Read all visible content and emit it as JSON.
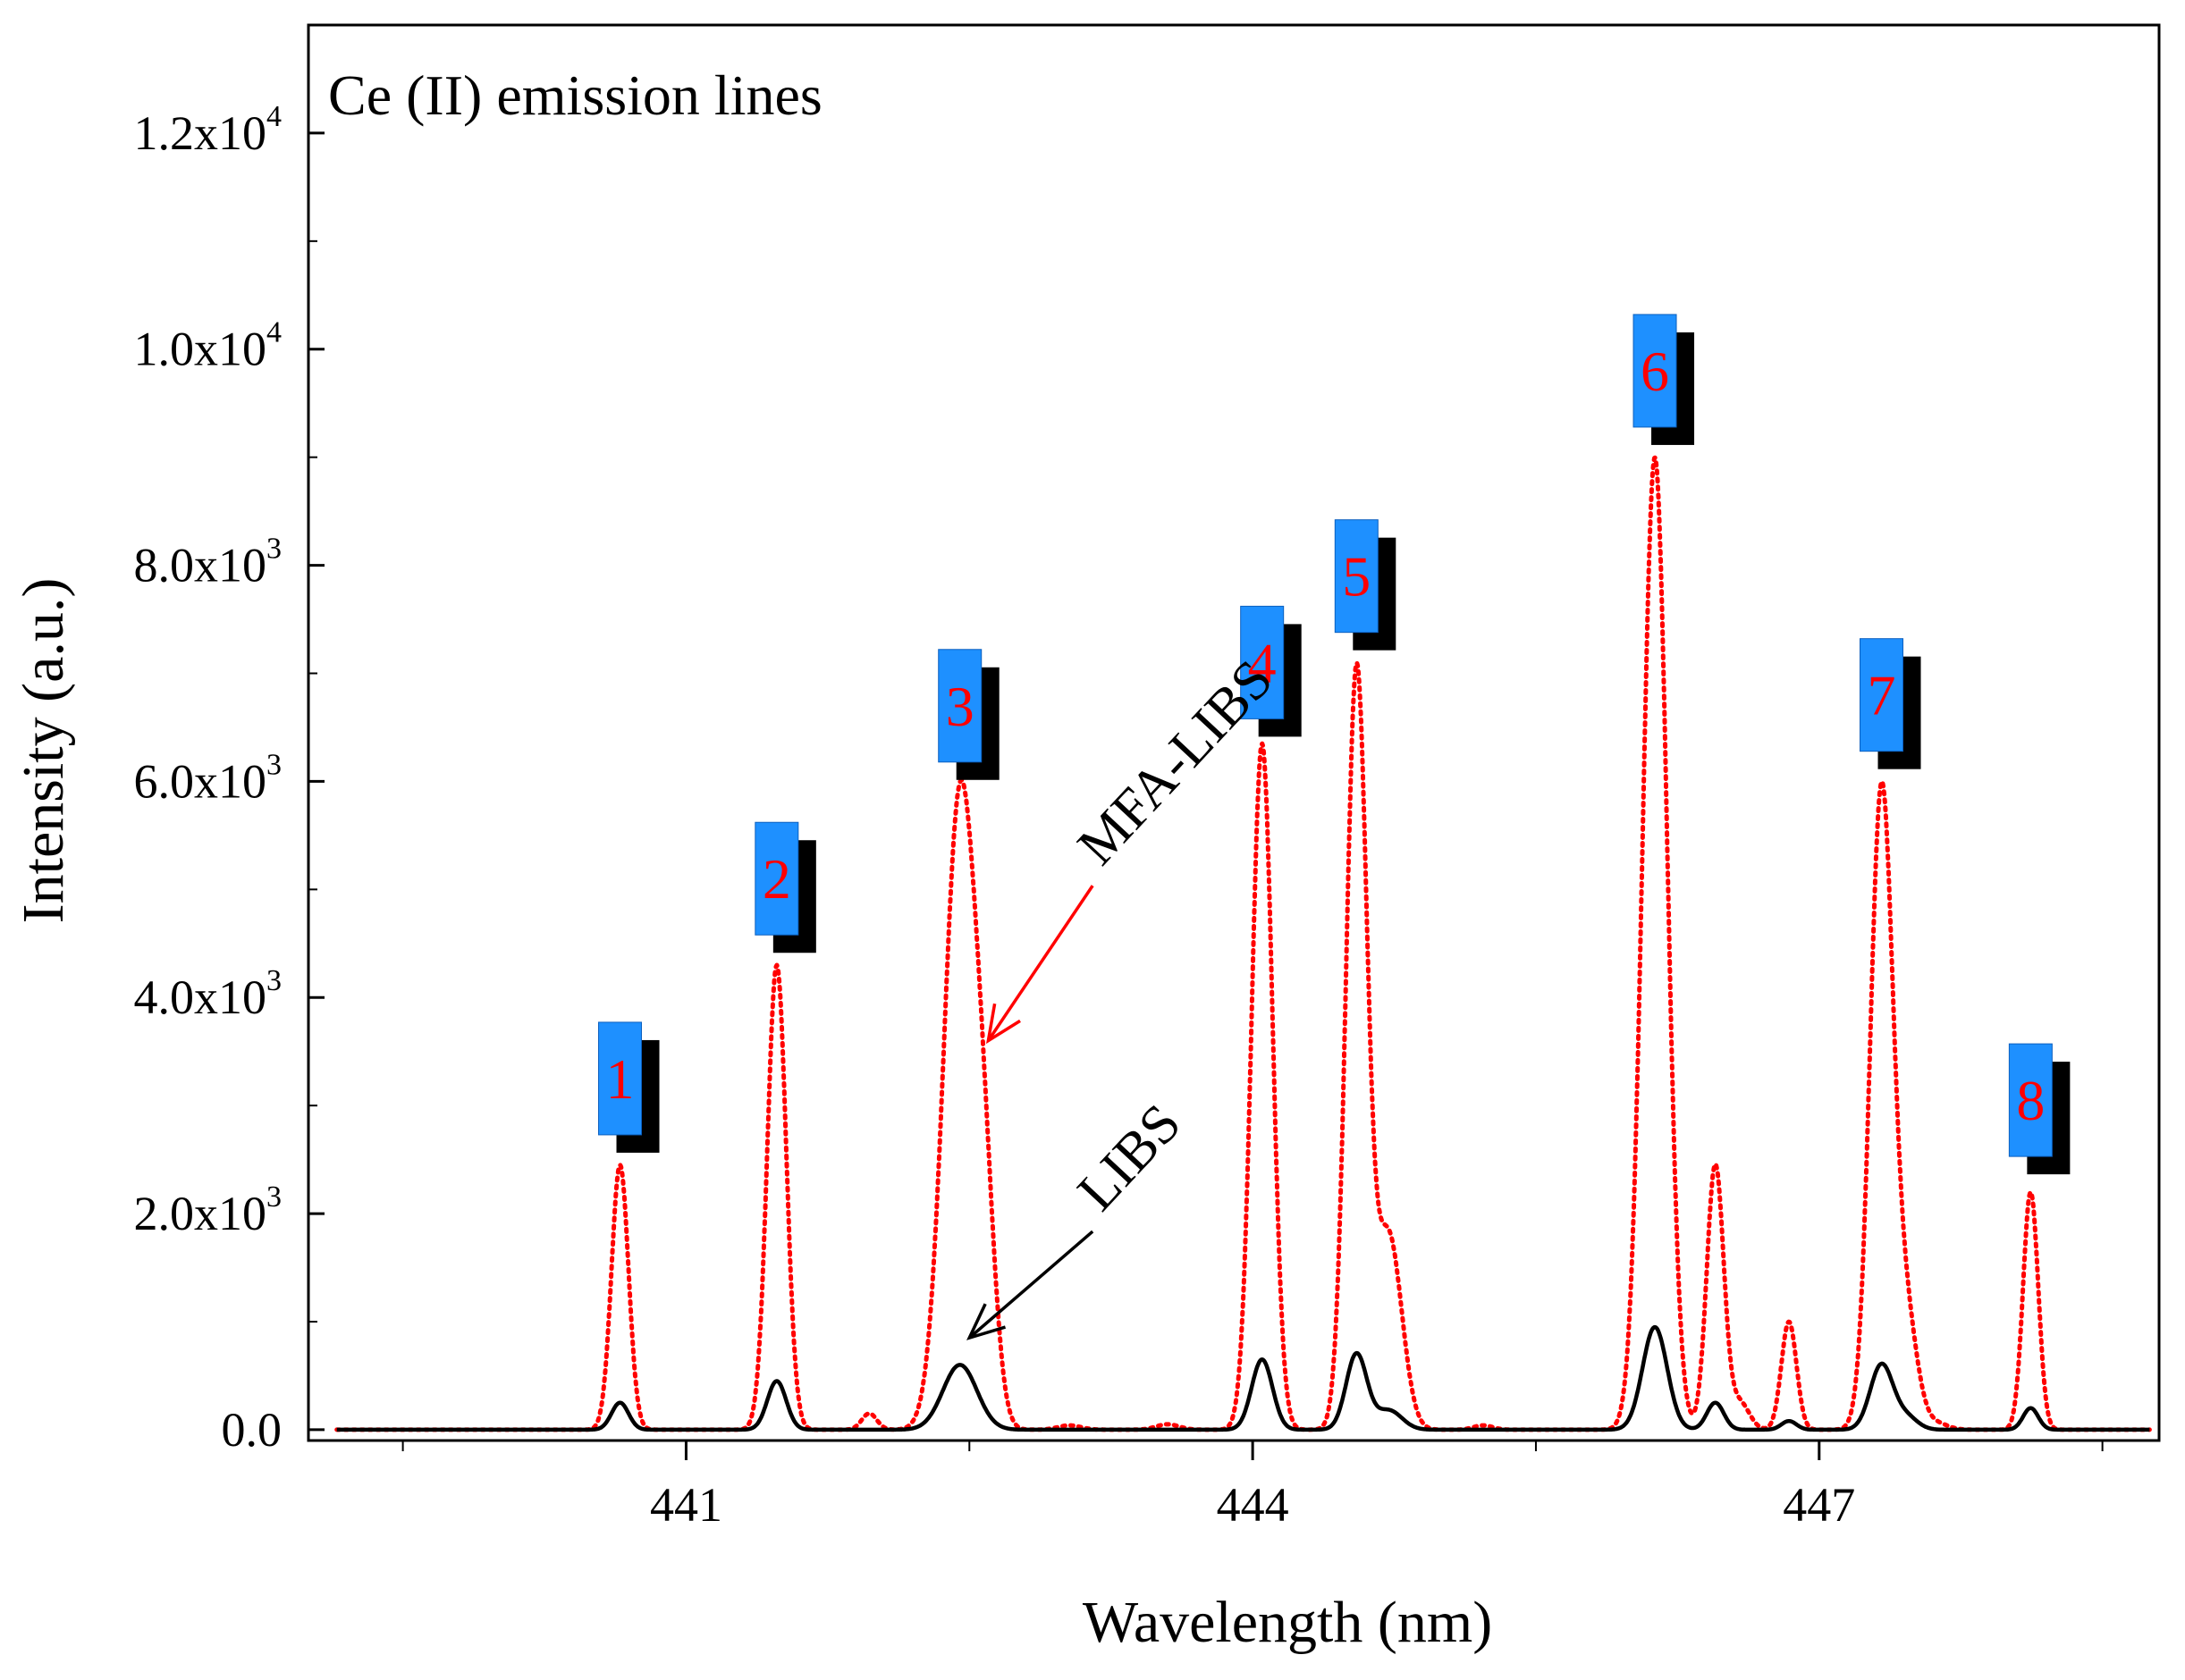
{
  "chart_data": {
    "type": "line",
    "title": "Ce (II) emission lines",
    "xlabel": "Wavelength (nm)",
    "ylabel": "Intensity (a.u.)",
    "xlim": [
      439.0,
      448.8
    ],
    "ylim": [
      -100,
      13000
    ],
    "x_ticks": [
      441,
      444,
      447
    ],
    "x_tick_labels": [
      "441",
      "444",
      "447"
    ],
    "x_minor_ticks": [
      439.5,
      442.5,
      445.5,
      448.5
    ],
    "y_ticks": [
      0,
      2000,
      4000,
      6000,
      8000,
      10000,
      12000
    ],
    "y_tick_labels": [
      {
        "mantissa": "0.0",
        "exp": ""
      },
      {
        "mantissa": "2.0x10",
        "exp": "3"
      },
      {
        "mantissa": "4.0x10",
        "exp": "3"
      },
      {
        "mantissa": "6.0x10",
        "exp": "3"
      },
      {
        "mantissa": "8.0x10",
        "exp": "3"
      },
      {
        "mantissa": "1.0x10",
        "exp": "4"
      },
      {
        "mantissa": "1.2x10",
        "exp": "4"
      }
    ],
    "series": [
      {
        "name": "MFA-LIBS",
        "color": "#ff0000",
        "style": "dotted",
        "peaks": [
          {
            "x": 440.65,
            "y": 2450,
            "w": 0.045
          },
          {
            "x": 441.48,
            "y": 4300,
            "w": 0.05
          },
          {
            "x": 441.97,
            "y": 150,
            "w": 0.04
          },
          {
            "x": 442.45,
            "y": 5850,
            "w": 0.085
          },
          {
            "x": 442.58,
            "y": 1500,
            "w": 0.06
          },
          {
            "x": 443.03,
            "y": 40,
            "w": 0.06
          },
          {
            "x": 443.55,
            "y": 50,
            "w": 0.06
          },
          {
            "x": 444.05,
            "y": 6350,
            "w": 0.055
          },
          {
            "x": 444.55,
            "y": 7000,
            "w": 0.055
          },
          {
            "x": 444.72,
            "y": 1800,
            "w": 0.07
          },
          {
            "x": 445.22,
            "y": 40,
            "w": 0.05
          },
          {
            "x": 446.13,
            "y": 9000,
            "w": 0.065
          },
          {
            "x": 446.45,
            "y": 2450,
            "w": 0.045
          },
          {
            "x": 446.58,
            "y": 250,
            "w": 0.05
          },
          {
            "x": 446.84,
            "y": 1000,
            "w": 0.04
          },
          {
            "x": 447.33,
            "y": 5900,
            "w": 0.06
          },
          {
            "x": 447.46,
            "y": 1000,
            "w": 0.06
          },
          {
            "x": 447.62,
            "y": 60,
            "w": 0.06
          },
          {
            "x": 448.12,
            "y": 2200,
            "w": 0.04
          }
        ]
      },
      {
        "name": "LIBS",
        "color": "#000000",
        "style": "solid",
        "peaks": [
          {
            "x": 440.65,
            "y": 250,
            "w": 0.045
          },
          {
            "x": 441.48,
            "y": 450,
            "w": 0.05
          },
          {
            "x": 442.45,
            "y": 600,
            "w": 0.09
          },
          {
            "x": 444.05,
            "y": 650,
            "w": 0.055
          },
          {
            "x": 444.55,
            "y": 700,
            "w": 0.055
          },
          {
            "x": 444.72,
            "y": 180,
            "w": 0.07
          },
          {
            "x": 446.13,
            "y": 950,
            "w": 0.065
          },
          {
            "x": 446.45,
            "y": 250,
            "w": 0.045
          },
          {
            "x": 446.84,
            "y": 80,
            "w": 0.04
          },
          {
            "x": 447.33,
            "y": 600,
            "w": 0.06
          },
          {
            "x": 447.46,
            "y": 120,
            "w": 0.06
          },
          {
            "x": 448.12,
            "y": 200,
            "w": 0.04
          }
        ]
      }
    ],
    "peak_labels": [
      {
        "label": "1",
        "x": 440.65,
        "y": 3250
      },
      {
        "label": "2",
        "x": 441.48,
        "y": 5100
      },
      {
        "label": "3",
        "x": 442.45,
        "y": 6700
      },
      {
        "label": "4",
        "x": 444.05,
        "y": 7100
      },
      {
        "label": "5",
        "x": 444.55,
        "y": 7900
      },
      {
        "label": "6",
        "x": 446.13,
        "y": 9800
      },
      {
        "label": "7",
        "x": 447.33,
        "y": 6800
      },
      {
        "label": "8",
        "x": 448.12,
        "y": 3050
      }
    ],
    "peak_label_colors": {
      "front": "#1e90ff",
      "shadow": "#000000",
      "text": "#ff0000"
    },
    "annotations": [
      {
        "text": "MFA-LIBS",
        "color": "#ff0000",
        "text_at": [
          443.2,
          5200
        ],
        "arrow_to": [
          442.6,
          3600
        ]
      },
      {
        "text": "LIBS",
        "color": "#000000",
        "text_at": [
          443.2,
          2000
        ],
        "arrow_to": [
          442.5,
          850
        ]
      }
    ]
  }
}
